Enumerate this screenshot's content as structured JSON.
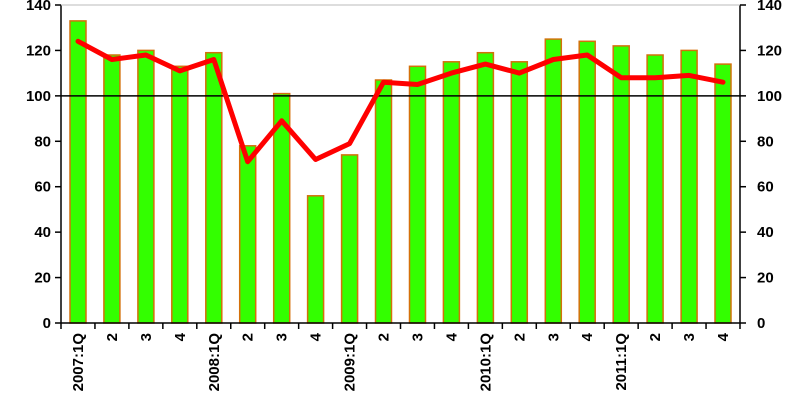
{
  "chart_data": {
    "type": "bar",
    "categories": [
      "2007:1Q",
      "2",
      "3",
      "4",
      "2008:1Q",
      "2",
      "3",
      "4",
      "2009:1Q",
      "2",
      "3",
      "4",
      "2010:1Q",
      "2",
      "3",
      "4",
      "2011:1Q",
      "2",
      "3",
      "4"
    ],
    "series": [
      {
        "type": "bar",
        "values": [
          133,
          118,
          120,
          113,
          119,
          78,
          101,
          56,
          74,
          107,
          113,
          115,
          119,
          115,
          125,
          124,
          122,
          118,
          120,
          114
        ]
      },
      {
        "type": "line",
        "values": [
          124,
          116,
          118,
          111,
          116,
          71,
          89,
          72,
          79,
          106,
          105,
          110,
          114,
          110,
          116,
          118,
          108,
          108,
          109,
          106
        ]
      }
    ],
    "reference_line": 100,
    "ylim": [
      0,
      140
    ],
    "yticks": [
      0,
      20,
      40,
      60,
      80,
      100,
      120,
      140
    ],
    "y2lim": [
      0,
      140
    ],
    "y2ticks": [
      0,
      20,
      40,
      60,
      80,
      100,
      120,
      140
    ],
    "grid": false,
    "colors": {
      "bar_fill": "#33ff00",
      "bar_edge": "#d4700a",
      "line": "#ff0000",
      "reference": "#000000"
    }
  }
}
